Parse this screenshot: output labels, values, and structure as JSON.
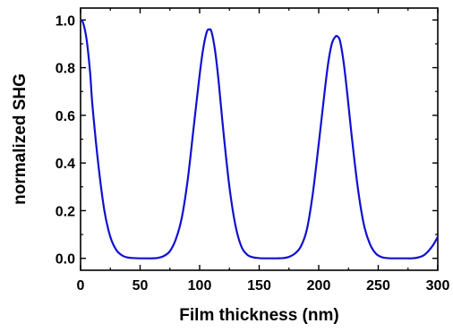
{
  "chart_data": {
    "type": "line",
    "title": "",
    "xlabel": "Film thickness (nm)",
    "ylabel": "normalized SHG",
    "xlim": [
      0,
      300
    ],
    "ylim": [
      -0.05,
      1.05
    ],
    "x_ticks": [
      0,
      50,
      100,
      150,
      200,
      250,
      300
    ],
    "x_tick_labels": [
      "0",
      "50",
      "100",
      "150",
      "200",
      "250",
      "300"
    ],
    "y_ticks": [
      0.0,
      0.2,
      0.4,
      0.6,
      0.8,
      1.0
    ],
    "y_tick_labels": [
      "0.0",
      "0.2",
      "0.4",
      "0.6",
      "0.8",
      "1.0"
    ],
    "grid": false,
    "line_color": "#1010d0",
    "series": [
      {
        "x": [
          0,
          2,
          5,
          8,
          10,
          15,
          20,
          25,
          30,
          35,
          40,
          45,
          50,
          55,
          60,
          65,
          70,
          75,
          80,
          85,
          90,
          95,
          100,
          103,
          106,
          108,
          110,
          113,
          116,
          120,
          125,
          130,
          135,
          140,
          145,
          150,
          155,
          160,
          165,
          170,
          175,
          180,
          185,
          190,
          195,
          200,
          205,
          208,
          211,
          214,
          216,
          218,
          221,
          224,
          228,
          233,
          238,
          243,
          248,
          253,
          258,
          263,
          268,
          273,
          278,
          283,
          288,
          292,
          296,
          300
        ],
        "y": [
          1.0,
          0.99,
          0.92,
          0.78,
          0.64,
          0.39,
          0.2,
          0.09,
          0.035,
          0.012,
          0.003,
          0.001,
          0.0,
          0.0,
          0.0,
          0.002,
          0.01,
          0.03,
          0.08,
          0.17,
          0.33,
          0.55,
          0.77,
          0.88,
          0.95,
          0.96,
          0.95,
          0.87,
          0.74,
          0.53,
          0.3,
          0.14,
          0.05,
          0.015,
          0.004,
          0.001,
          0.0,
          0.0,
          0.0,
          0.001,
          0.006,
          0.02,
          0.05,
          0.12,
          0.27,
          0.48,
          0.7,
          0.82,
          0.9,
          0.93,
          0.93,
          0.91,
          0.82,
          0.69,
          0.5,
          0.29,
          0.14,
          0.06,
          0.02,
          0.005,
          0.001,
          0.0,
          0.0,
          0.0,
          0.0,
          0.003,
          0.012,
          0.03,
          0.055,
          0.09
        ]
      }
    ]
  }
}
